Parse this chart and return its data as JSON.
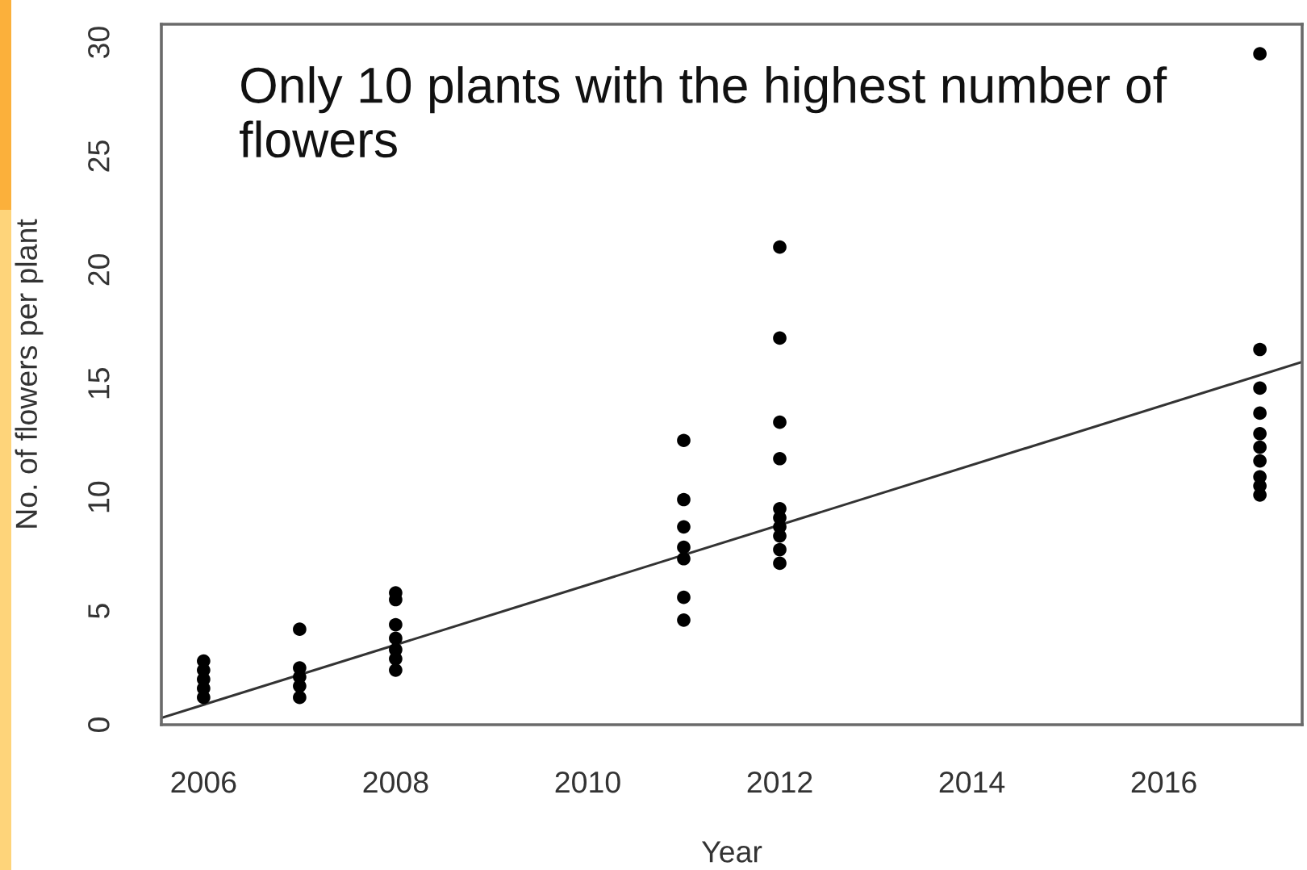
{
  "chart_data": {
    "type": "scatter",
    "xlabel": "Year",
    "ylabel": "No. of flowers per plant",
    "annotations": [
      "Only 10 plants with the highest number of flowers"
    ],
    "xlim": [
      2005.56,
      2017.44
    ],
    "ylim": [
      0,
      30.8
    ],
    "xticks": [
      2006,
      2008,
      2010,
      2012,
      2014,
      2016
    ],
    "yticks": [
      0,
      5,
      10,
      15,
      20,
      25,
      30
    ],
    "grid": false,
    "series": [
      {
        "color": "#000000",
        "marker": "circle",
        "x": [
          2006,
          2006,
          2006,
          2006,
          2006,
          2007,
          2007,
          2007,
          2007,
          2007,
          2008,
          2008,
          2008,
          2008,
          2008,
          2008,
          2008,
          2011,
          2011,
          2011,
          2011,
          2011,
          2011,
          2011,
          2012,
          2012,
          2012,
          2012,
          2012,
          2012,
          2012,
          2012,
          2012,
          2012,
          2017,
          2017,
          2017,
          2017,
          2017,
          2017,
          2017,
          2017,
          2017,
          2017
        ],
        "values": [
          2.8,
          2.4,
          2.0,
          1.6,
          1.2,
          4.2,
          2.5,
          2.1,
          1.7,
          1.2,
          5.8,
          5.5,
          4.4,
          3.8,
          3.3,
          2.9,
          2.4,
          12.5,
          9.9,
          8.7,
          7.8,
          7.3,
          5.6,
          4.6,
          21.0,
          17.0,
          13.3,
          11.7,
          9.5,
          9.1,
          8.7,
          8.3,
          7.7,
          7.1,
          29.5,
          16.5,
          14.8,
          13.7,
          12.8,
          12.2,
          11.6,
          10.9,
          10.5,
          10.1
        ]
      },
      {
        "type": "line",
        "color": "#333333",
        "line_style": "solid",
        "x": [
          2005.56,
          2017.44
        ],
        "values": [
          0.3,
          15.95
        ]
      }
    ]
  }
}
